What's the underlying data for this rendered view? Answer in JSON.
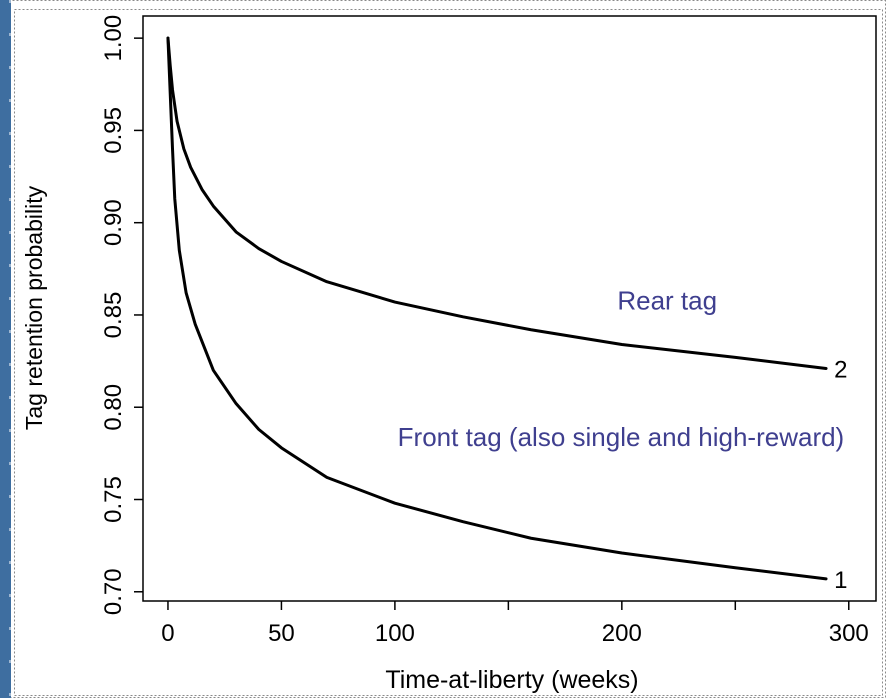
{
  "chart_data": {
    "type": "line",
    "xlabel": "Time-at-liberty (weeks)",
    "ylabel": "Tag retention probability",
    "xlim": [
      -11,
      312
    ],
    "ylim": [
      0.695,
      1.012
    ],
    "x_tick_labels": [
      {
        "x": 0,
        "label": "0"
      },
      {
        "x": 50,
        "label": "50"
      },
      {
        "x": 100,
        "label": "100"
      },
      {
        "x": 200,
        "label": "200"
      },
      {
        "x": 300,
        "label": "300"
      }
    ],
    "x_minor_ticks": [
      150,
      250
    ],
    "y_ticks": [
      0.7,
      0.75,
      0.8,
      0.85,
      0.9,
      0.95,
      1.0
    ],
    "y_tick_labels": [
      "0.70",
      "0.75",
      "0.80",
      "0.85",
      "0.90",
      "0.95",
      "1.00"
    ],
    "grid": false,
    "series": [
      {
        "name": "Rear tag",
        "end_label": "2",
        "points": [
          [
            0,
            1.0
          ],
          [
            1,
            0.985
          ],
          [
            2,
            0.972
          ],
          [
            4,
            0.955
          ],
          [
            7,
            0.94
          ],
          [
            10,
            0.93
          ],
          [
            15,
            0.918
          ],
          [
            20,
            0.909
          ],
          [
            30,
            0.895
          ],
          [
            40,
            0.886
          ],
          [
            50,
            0.879
          ],
          [
            70,
            0.868
          ],
          [
            100,
            0.857
          ],
          [
            130,
            0.849
          ],
          [
            160,
            0.842
          ],
          [
            200,
            0.834
          ],
          [
            250,
            0.827
          ],
          [
            290,
            0.821
          ]
        ]
      },
      {
        "name": "Front tag (also single and high-reward)",
        "end_label": "1",
        "points": [
          [
            0,
            1.0
          ],
          [
            1,
            0.97
          ],
          [
            2,
            0.94
          ],
          [
            3,
            0.913
          ],
          [
            5,
            0.885
          ],
          [
            8,
            0.862
          ],
          [
            12,
            0.845
          ],
          [
            20,
            0.82
          ],
          [
            30,
            0.802
          ],
          [
            40,
            0.788
          ],
          [
            50,
            0.778
          ],
          [
            70,
            0.762
          ],
          [
            100,
            0.748
          ],
          [
            130,
            0.738
          ],
          [
            160,
            0.729
          ],
          [
            200,
            0.721
          ],
          [
            250,
            0.713
          ],
          [
            290,
            0.707
          ]
        ]
      }
    ],
    "annotations": [
      {
        "text": "Rear tag",
        "x": 220,
        "y": 0.853
      },
      {
        "text": "Front tag (also single and high-reward)",
        "x": 298,
        "y": 0.779
      }
    ],
    "annotation_color": "#3f3f8f",
    "line_color": "#000000"
  }
}
